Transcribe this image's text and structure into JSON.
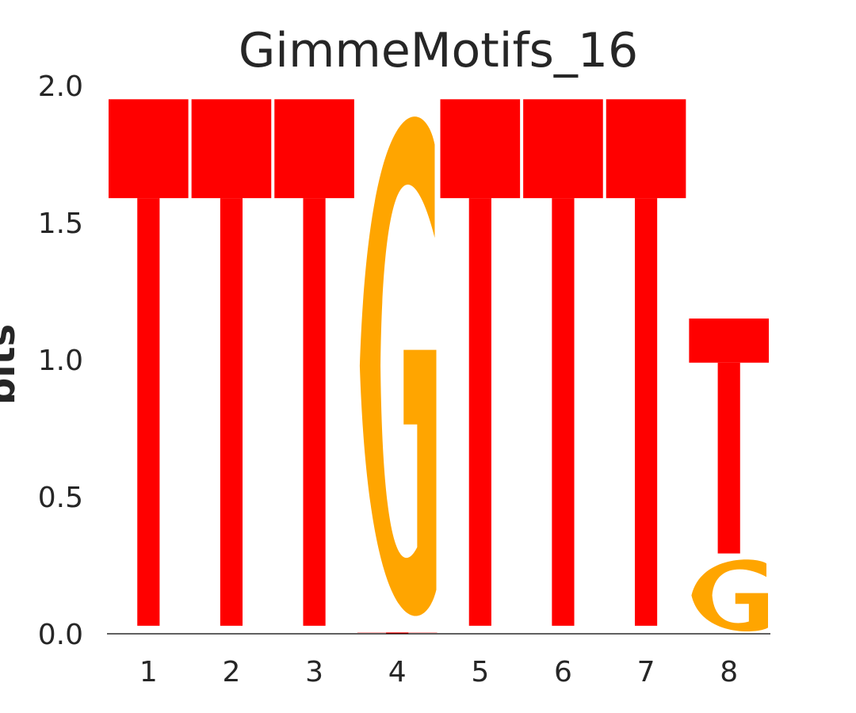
{
  "chart_data": {
    "type": "sequence-logo",
    "title": "GimmeMotifs_16",
    "ylabel": "bits",
    "xlabel": "",
    "ylim": [
      0,
      2
    ],
    "y_ticks": [
      "0.0",
      "0.5",
      "1.0",
      "1.5",
      "2.0"
    ],
    "positions": [
      "1",
      "2",
      "3",
      "4",
      "5",
      "6",
      "7",
      "8"
    ],
    "letter_colors": {
      "A": "#008000",
      "C": "#0000ff",
      "G": "#ffa500",
      "T": "#ff0000"
    },
    "stacks": [
      [
        {
          "letter": "A",
          "bits": 0.0
        },
        {
          "letter": "C",
          "bits": 0.0
        },
        {
          "letter": "G",
          "bits": 0.0
        },
        {
          "letter": "T",
          "bits": 1.95
        }
      ],
      [
        {
          "letter": "A",
          "bits": 0.0
        },
        {
          "letter": "C",
          "bits": 0.0
        },
        {
          "letter": "G",
          "bits": 0.0
        },
        {
          "letter": "T",
          "bits": 1.95
        }
      ],
      [
        {
          "letter": "A",
          "bits": 0.0
        },
        {
          "letter": "C",
          "bits": 0.0
        },
        {
          "letter": "G",
          "bits": 0.0
        },
        {
          "letter": "T",
          "bits": 1.95
        }
      ],
      [
        {
          "letter": "A",
          "bits": 0.0
        },
        {
          "letter": "C",
          "bits": 0.0
        },
        {
          "letter": "T",
          "bits": 0.005
        },
        {
          "letter": "G",
          "bits": 1.945
        }
      ],
      [
        {
          "letter": "A",
          "bits": 0.0
        },
        {
          "letter": "C",
          "bits": 0.0
        },
        {
          "letter": "G",
          "bits": 0.0
        },
        {
          "letter": "T",
          "bits": 1.95
        }
      ],
      [
        {
          "letter": "A",
          "bits": 0.0
        },
        {
          "letter": "C",
          "bits": 0.0
        },
        {
          "letter": "G",
          "bits": 0.0
        },
        {
          "letter": "T",
          "bits": 1.95
        }
      ],
      [
        {
          "letter": "A",
          "bits": 0.0
        },
        {
          "letter": "C",
          "bits": 0.0
        },
        {
          "letter": "G",
          "bits": 0.0
        },
        {
          "letter": "T",
          "bits": 1.95
        }
      ],
      [
        {
          "letter": "A",
          "bits": 0.0
        },
        {
          "letter": "C",
          "bits": 0.0
        },
        {
          "letter": "G",
          "bits": 0.28
        },
        {
          "letter": "T",
          "bits": 0.87
        }
      ]
    ]
  }
}
